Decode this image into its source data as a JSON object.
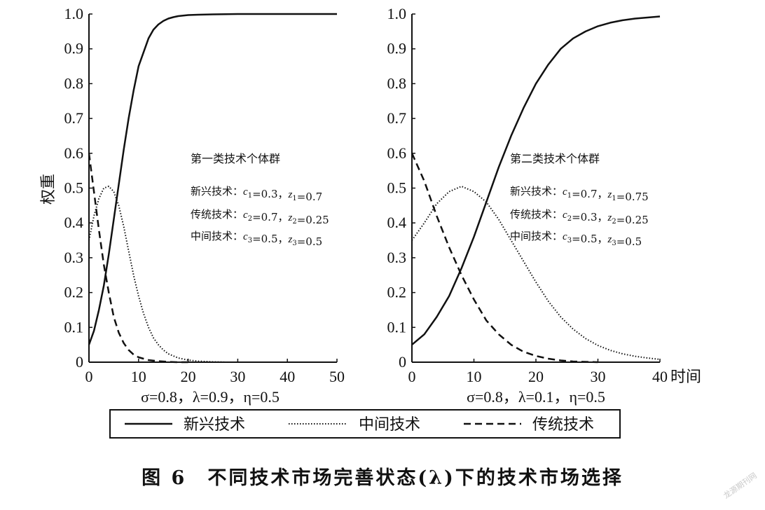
{
  "chart_data": [
    {
      "type": "line",
      "panel": "left",
      "ylabel": "权重",
      "xlim": [
        0,
        50
      ],
      "ylim": [
        0,
        1
      ],
      "x_ticks": [
        "0",
        "10",
        "20",
        "30",
        "40",
        "50"
      ],
      "y_ticks": [
        "0",
        "0.1",
        "0.2",
        "0.3",
        "0.4",
        "0.5",
        "0.6",
        "0.7",
        "0.8",
        "0.9",
        "1.0"
      ],
      "params_label": "σ=0.8，λ=0.9，η=0.5",
      "annotation": {
        "title": "第一类技术个体群",
        "lines": [
          {
            "tech": "新兴技术：",
            "c": "0.3",
            "z": "0.7",
            "idx": "1"
          },
          {
            "tech": "传统技术：",
            "c": "0.7",
            "z": "0.25",
            "idx": "2"
          },
          {
            "tech": "中间技术：",
            "c": "0.5",
            "z": "0.5",
            "idx": "3"
          }
        ]
      },
      "series": [
        {
          "name": "新兴技术",
          "style": "solid",
          "x": [
            0,
            1,
            2,
            3,
            4,
            5,
            6,
            7,
            8,
            9,
            10,
            11,
            12,
            13,
            14,
            15,
            16,
            17,
            18,
            20,
            22,
            25,
            30,
            35,
            40,
            45,
            50
          ],
          "y": [
            0.05,
            0.09,
            0.15,
            0.22,
            0.31,
            0.41,
            0.51,
            0.61,
            0.7,
            0.78,
            0.85,
            0.89,
            0.93,
            0.955,
            0.97,
            0.98,
            0.987,
            0.991,
            0.994,
            0.997,
            0.998,
            0.999,
            1.0,
            1.0,
            1.0,
            1.0,
            1.0
          ]
        },
        {
          "name": "中间技术",
          "style": "dotted",
          "x": [
            0,
            1,
            2,
            3,
            4,
            5,
            6,
            7,
            8,
            9,
            10,
            11,
            12,
            13,
            14,
            15,
            16,
            18,
            20,
            22,
            25,
            28,
            30
          ],
          "y": [
            0.35,
            0.42,
            0.47,
            0.5,
            0.505,
            0.49,
            0.45,
            0.39,
            0.32,
            0.25,
            0.19,
            0.14,
            0.1,
            0.07,
            0.05,
            0.035,
            0.024,
            0.012,
            0.006,
            0.003,
            0.001,
            0.0,
            0.0
          ]
        },
        {
          "name": "传统技术",
          "style": "dashed",
          "x": [
            0,
            1,
            2,
            3,
            4,
            5,
            6,
            7,
            8,
            9,
            10,
            12,
            14,
            16,
            18,
            20
          ],
          "y": [
            0.6,
            0.49,
            0.38,
            0.28,
            0.2,
            0.13,
            0.085,
            0.055,
            0.035,
            0.022,
            0.014,
            0.006,
            0.003,
            0.001,
            0.0,
            0.0
          ]
        }
      ]
    },
    {
      "type": "line",
      "panel": "right",
      "xlim": [
        0,
        40
      ],
      "ylim": [
        0,
        1
      ],
      "x_ticks": [
        "0",
        "10",
        "20",
        "30",
        "40"
      ],
      "x_axis_suffix": "时间",
      "y_ticks": [
        "0",
        "0.1",
        "0.2",
        "0.3",
        "0.4",
        "0.5",
        "0.6",
        "0.7",
        "0.8",
        "0.9",
        "1.0"
      ],
      "params_label": "σ=0.8，λ=0.1，η=0.5",
      "annotation": {
        "title": "第二类技术个体群",
        "lines": [
          {
            "tech": "新兴技术：",
            "c": "0.7",
            "z": "0.75",
            "idx": "1"
          },
          {
            "tech": "传统技术：",
            "c": "0.3",
            "z": "0.25",
            "idx": "2"
          },
          {
            "tech": "中间技术：",
            "c": "0.5",
            "z": "0.5",
            "idx": "3"
          }
        ]
      },
      "series": [
        {
          "name": "新兴技术",
          "style": "solid",
          "x": [
            0,
            2,
            4,
            6,
            8,
            10,
            12,
            14,
            16,
            18,
            20,
            22,
            24,
            26,
            28,
            30,
            32,
            34,
            36,
            38,
            40
          ],
          "y": [
            0.05,
            0.08,
            0.13,
            0.19,
            0.27,
            0.36,
            0.46,
            0.56,
            0.65,
            0.73,
            0.8,
            0.855,
            0.9,
            0.93,
            0.95,
            0.965,
            0.975,
            0.982,
            0.987,
            0.99,
            0.993
          ]
        },
        {
          "name": "中间技术",
          "style": "dotted",
          "x": [
            0,
            2,
            4,
            6,
            8,
            10,
            12,
            14,
            16,
            18,
            20,
            22,
            24,
            26,
            28,
            30,
            32,
            34,
            36,
            38,
            40
          ],
          "y": [
            0.35,
            0.4,
            0.455,
            0.49,
            0.505,
            0.49,
            0.46,
            0.41,
            0.35,
            0.29,
            0.23,
            0.175,
            0.13,
            0.095,
            0.068,
            0.048,
            0.034,
            0.024,
            0.017,
            0.012,
            0.008
          ]
        },
        {
          "name": "传统技术",
          "style": "dashed",
          "x": [
            0,
            2,
            4,
            6,
            8,
            10,
            12,
            14,
            16,
            18,
            20,
            22,
            24,
            26,
            28,
            30
          ],
          "y": [
            0.6,
            0.52,
            0.42,
            0.33,
            0.25,
            0.18,
            0.12,
            0.08,
            0.05,
            0.03,
            0.018,
            0.01,
            0.005,
            0.002,
            0.001,
            0.0
          ]
        }
      ]
    }
  ],
  "legend": [
    {
      "label": "新兴技术",
      "style": "solid"
    },
    {
      "label": "中间技术",
      "style": "dotted"
    },
    {
      "label": "传统技术",
      "style": "dashed"
    }
  ],
  "caption": "图 6　不同技术市场完善状态(λ)下的技术市场选择",
  "watermark": "龙源期刊网"
}
